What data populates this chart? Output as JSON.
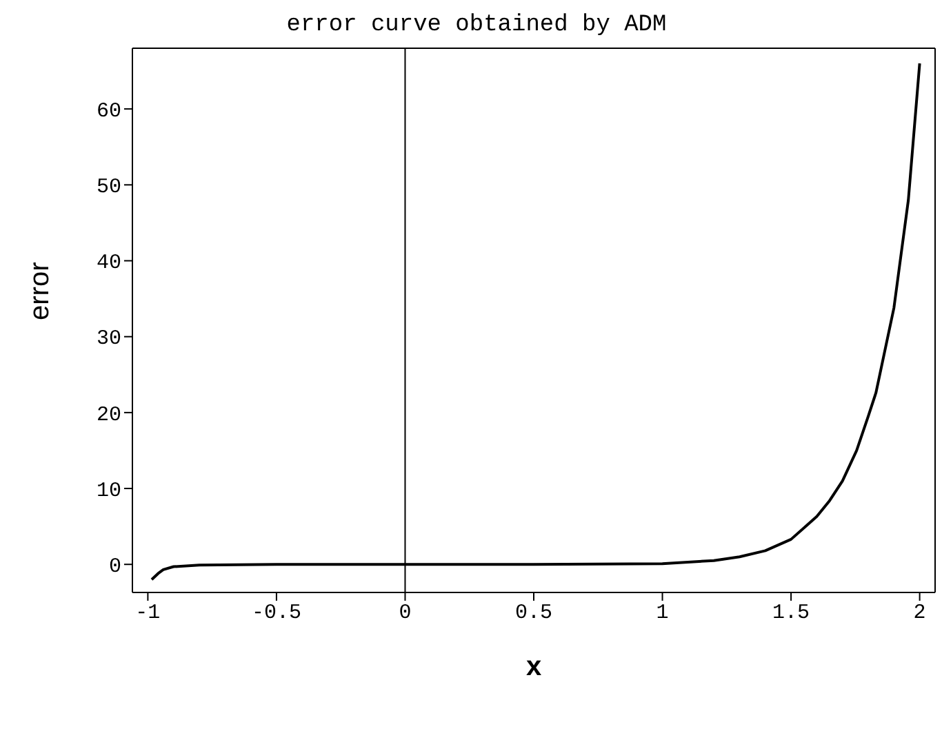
{
  "chart_data": {
    "type": "line",
    "title": "error curve obtained by ADM",
    "xlabel": "x",
    "ylabel": "error",
    "x": [
      -0.985,
      -0.96,
      -0.94,
      -0.9,
      -0.8,
      -0.5,
      0,
      0.5,
      1,
      1.2,
      1.3,
      1.4,
      1.5,
      1.6,
      1.65,
      1.7,
      1.755,
      1.8,
      1.83,
      1.9,
      1.956,
      2
    ],
    "series": [
      {
        "color": "#000000",
        "values": [
          -2,
          -1.2,
          -0.7,
          -0.3,
          -0.1,
          0,
          0,
          0,
          0.1,
          0.5,
          1,
          1.8,
          3.3,
          6.3,
          8.4,
          11,
          15,
          19.5,
          22.6,
          33.8,
          48,
          66
        ]
      }
    ],
    "xlim": [
      -1.06,
      2.06
    ],
    "ylim": [
      -3.7,
      68
    ],
    "xticks": [
      -1,
      -0.5,
      0,
      0.5,
      1,
      1.5,
      2
    ],
    "yticks": [
      0,
      10,
      20,
      30,
      40,
      50,
      60
    ],
    "ref_lines": [
      {
        "axis": "x",
        "value": 0,
        "color": "#000000"
      }
    ],
    "grid": false,
    "legend": false,
    "marker": "none",
    "line_style": "solid"
  }
}
